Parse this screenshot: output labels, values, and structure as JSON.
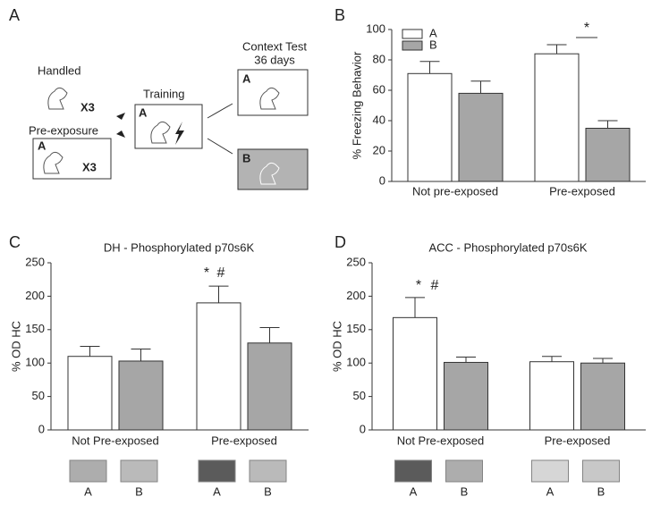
{
  "panel_labels": [
    "A",
    "B",
    "C",
    "D"
  ],
  "diagram": {
    "handled": "Handled",
    "handled_times": "X3",
    "pre_exposure": "Pre-exposure",
    "pre_context": "A",
    "pre_times": "X3",
    "training": "Training",
    "training_context": "A",
    "context_test": "Context Test",
    "test_delay": "36 days",
    "test_context_a": "A",
    "test_context_b": "B"
  },
  "chart_data": [
    {
      "type": "bar",
      "ylabel": "% Freezing Behavior",
      "categories": [
        "Not pre-exposed",
        "Pre-exposed"
      ],
      "series": [
        {
          "name": "A",
          "color": "#ffffff",
          "values": [
            71,
            84
          ],
          "errors": [
            8,
            6
          ]
        },
        {
          "name": "B",
          "color": "#a6a6a6",
          "values": [
            58,
            35
          ],
          "errors": [
            8,
            5
          ]
        }
      ],
      "ylim": [
        0,
        100
      ],
      "yticks": [
        0,
        20,
        40,
        60,
        80,
        100
      ],
      "legend": "upper left",
      "annotations": [
        "*"
      ]
    },
    {
      "type": "bar",
      "title": "DH - Phosphorylated p70s6K",
      "ylabel": "% OD HC",
      "categories": [
        "Not Pre-exposed",
        "Pre-exposed"
      ],
      "series": [
        {
          "name": "A",
          "color": "#ffffff",
          "values": [
            110,
            190
          ],
          "errors": [
            15,
            25
          ]
        },
        {
          "name": "B",
          "color": "#a6a6a6",
          "values": [
            103,
            130
          ],
          "errors": [
            18,
            23
          ]
        }
      ],
      "ylim": [
        0,
        250
      ],
      "yticks": [
        0,
        50,
        100,
        150,
        200,
        250
      ],
      "annotations": [
        "*",
        "#"
      ],
      "blot_labels": [
        "A",
        "B",
        "A",
        "B"
      ]
    },
    {
      "type": "bar",
      "title": "ACC - Phosphorylated p70s6K",
      "ylabel": "% OD HC",
      "categories": [
        "Not Pre-exposed",
        "Pre-exposed"
      ],
      "series": [
        {
          "name": "A",
          "color": "#ffffff",
          "values": [
            168,
            102
          ],
          "errors": [
            30,
            8
          ]
        },
        {
          "name": "B",
          "color": "#a6a6a6",
          "values": [
            101,
            100
          ],
          "errors": [
            8,
            7
          ]
        }
      ],
      "ylim": [
        0,
        250
      ],
      "yticks": [
        0,
        50,
        100,
        150,
        200,
        250
      ],
      "annotations": [
        "*",
        "#"
      ],
      "blot_labels": [
        "A",
        "B",
        "A",
        "B"
      ]
    }
  ]
}
